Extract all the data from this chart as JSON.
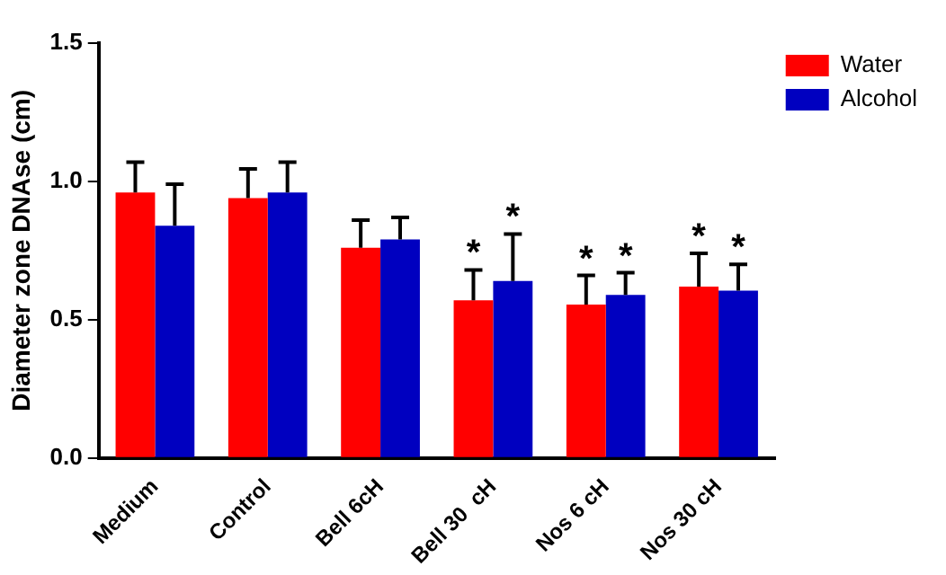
{
  "chart_data": {
    "type": "bar",
    "ylabel": "Diameter zone DNAse (cm)",
    "categories": [
      "Medium",
      "Control",
      "Bell 6cH",
      "Bell 30  cH",
      "Nos 6 cH",
      "Nos 30 cH"
    ],
    "series": [
      {
        "name": "Water",
        "color": "#ff0000",
        "values": [
          0.96,
          0.94,
          0.76,
          0.57,
          0.555,
          0.62
        ],
        "errors": [
          [
            0.96,
            1.07
          ],
          [
            0.94,
            1.045
          ],
          [
            0.76,
            0.86
          ],
          [
            0.57,
            0.68
          ],
          [
            0.555,
            0.66
          ],
          [
            0.62,
            0.74
          ]
        ],
        "value_labels": [
          null,
          null,
          null,
          "*",
          "*",
          "*"
        ]
      },
      {
        "name": "Alcohol",
        "color": "#0000c0",
        "values": [
          0.84,
          0.96,
          0.79,
          0.64,
          0.59,
          0.605
        ],
        "errors": [
          [
            0.84,
            0.99
          ],
          [
            0.96,
            1.07
          ],
          [
            0.79,
            0.87
          ],
          [
            0.64,
            0.81
          ],
          [
            0.59,
            0.67
          ],
          [
            0.605,
            0.7
          ]
        ],
        "value_labels": [
          null,
          null,
          null,
          "*",
          "*",
          "*"
        ]
      }
    ],
    "ylim": [
      0,
      1.5
    ],
    "yticks": [
      {
        "value": 0,
        "label": "0.0"
      },
      {
        "value": 0.5,
        "label": "0.5"
      },
      {
        "value": 1,
        "label": "1.0"
      },
      {
        "value": 1.5,
        "label": "1.5"
      }
    ],
    "grid": false,
    "legend": "top right"
  }
}
